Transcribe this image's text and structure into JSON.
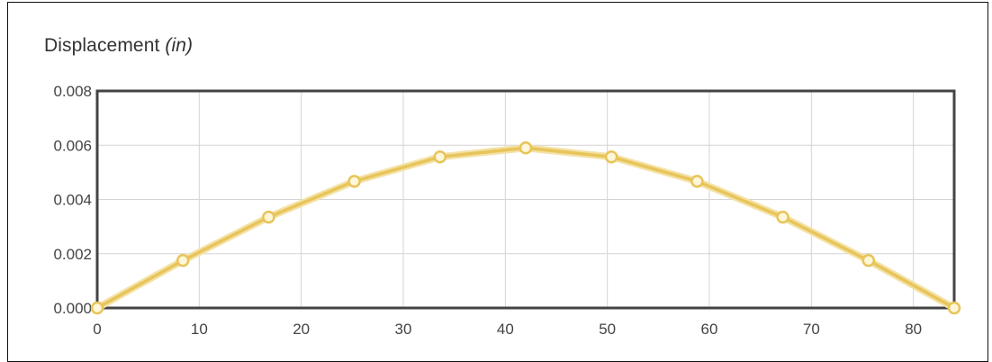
{
  "chart_data": {
    "type": "line",
    "title": "Displacement",
    "title_unit": "(in)",
    "xlabel": "",
    "ylabel": "",
    "xlim": [
      0,
      84
    ],
    "ylim": [
      0,
      0.008
    ],
    "x_ticks": [
      0,
      10,
      20,
      30,
      40,
      50,
      60,
      70,
      80
    ],
    "y_ticks": [
      "0.000",
      "0.002",
      "0.004",
      "0.006",
      "0.008"
    ],
    "grid": true,
    "legend": "none",
    "series": [
      {
        "color": "#e8c45a",
        "marker_fill": "#fdf6d8",
        "x": [
          0,
          8.4,
          16.8,
          25.2,
          33.6,
          42,
          50.4,
          58.8,
          67.2,
          75.6,
          84
        ],
        "y": [
          0,
          0.00175,
          0.00335,
          0.00467,
          0.00557,
          0.0059,
          0.00557,
          0.00467,
          0.00335,
          0.00175,
          0
        ]
      }
    ]
  },
  "colors": {
    "plot_border": "#444444",
    "grid": "#d4d4d4",
    "tick_text": "#444444"
  }
}
